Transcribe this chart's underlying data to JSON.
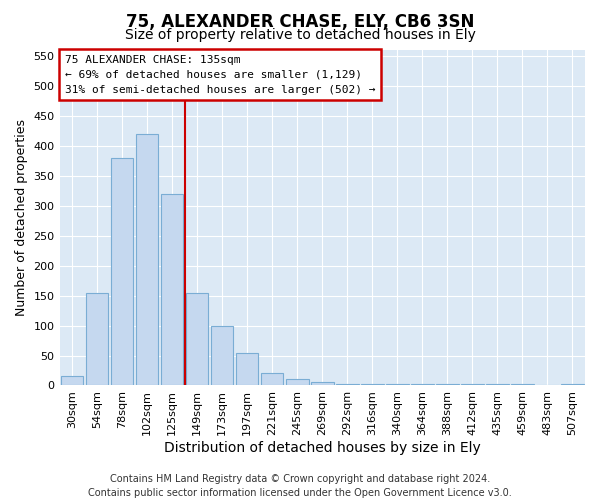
{
  "title": "75, ALEXANDER CHASE, ELY, CB6 3SN",
  "subtitle": "Size of property relative to detached houses in Ely",
  "xlabel": "Distribution of detached houses by size in Ely",
  "ylabel": "Number of detached properties",
  "footer_line1": "Contains HM Land Registry data © Crown copyright and database right 2024.",
  "footer_line2": "Contains public sector information licensed under the Open Government Licence v3.0.",
  "annotation_line1": "75 ALEXANDER CHASE: 135sqm",
  "annotation_line2": "← 69% of detached houses are smaller (1,129)",
  "annotation_line3": "31% of semi-detached houses are larger (502) →",
  "bar_labels": [
    "30sqm",
    "54sqm",
    "78sqm",
    "102sqm",
    "125sqm",
    "149sqm",
    "173sqm",
    "197sqm",
    "221sqm",
    "245sqm",
    "269sqm",
    "292sqm",
    "316sqm",
    "340sqm",
    "364sqm",
    "388sqm",
    "412sqm",
    "435sqm",
    "459sqm",
    "483sqm",
    "507sqm"
  ],
  "bar_values": [
    15,
    155,
    380,
    420,
    320,
    155,
    100,
    55,
    20,
    10,
    5,
    3,
    3,
    3,
    2,
    2,
    2,
    2,
    2,
    1,
    2
  ],
  "bar_color": "#c5d8ef",
  "bar_edge_color": "#7aadd4",
  "red_line_x": 4.5,
  "ylim": [
    0,
    560
  ],
  "yticks": [
    0,
    50,
    100,
    150,
    200,
    250,
    300,
    350,
    400,
    450,
    500,
    550
  ],
  "fig_bg_color": "#ffffff",
  "plot_bg_color": "#dce9f5",
  "annotation_box_edge": "#cc0000",
  "red_line_color": "#cc0000",
  "title_fontsize": 12,
  "subtitle_fontsize": 10,
  "ylabel_fontsize": 9,
  "xlabel_fontsize": 10,
  "tick_fontsize": 8,
  "footer_fontsize": 7
}
